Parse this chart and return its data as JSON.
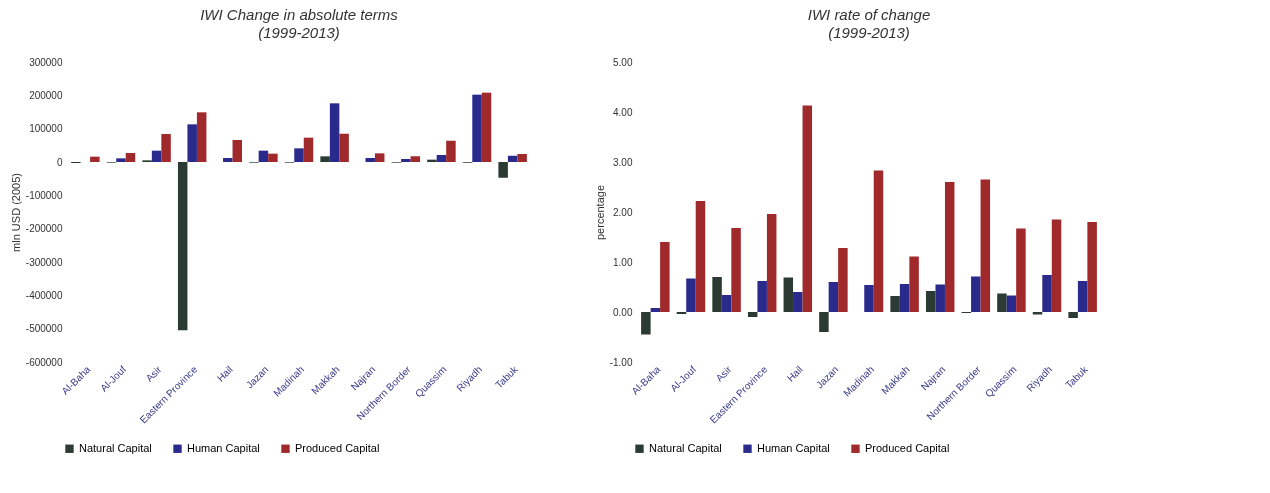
{
  "chart_data": [
    {
      "type": "bar",
      "title": "IWI Change in absolute terms",
      "subtitle": "(1999-2013)",
      "ylabel": "mln USD (2005)",
      "categories": [
        "Al-Baha",
        "Al-Jouf",
        "Asir",
        "Eastern Province",
        "Hail",
        "Jazan",
        "Madinah",
        "Makkah",
        "Najran",
        "Northern Border",
        "Quassim",
        "Riyadh",
        "Tabuk"
      ],
      "series": [
        {
          "name": "Natural Capital",
          "color": "#2b3a33",
          "values": [
            -3000,
            -2000,
            5000,
            -505000,
            0,
            -2000,
            -2000,
            17000,
            0,
            -2000,
            7000,
            -2000,
            -47000
          ]
        },
        {
          "name": "Human Capital",
          "color": "#2a2a8c",
          "values": [
            0,
            11000,
            34000,
            113000,
            12000,
            34000,
            41000,
            176000,
            12000,
            9000,
            21000,
            202000,
            19000
          ]
        },
        {
          "name": "Produced Capital",
          "color": "#a0292b",
          "values": [
            16000,
            27000,
            84000,
            149000,
            66000,
            25000,
            73000,
            85000,
            26000,
            17000,
            64000,
            208000,
            24000
          ]
        }
      ],
      "ylim": [
        -600000,
        300000
      ],
      "yticks": [
        -600000,
        -500000,
        -400000,
        -300000,
        -200000,
        -100000,
        0,
        100000,
        200000,
        300000
      ],
      "grid": false,
      "legend": "bottom"
    },
    {
      "type": "bar",
      "title": "IWI  rate of change",
      "subtitle": "(1999-2013)",
      "ylabel": "percentage",
      "categories": [
        "Al-Baha",
        "Al-Jouf",
        "Asir",
        "Eastern Province",
        "Hail",
        "Jazan",
        "Madinah",
        "Makkah",
        "Najran",
        "Northern Border",
        "Quassim",
        "Riyadh",
        "Tabuk"
      ],
      "series": [
        {
          "name": "Natural Capital",
          "color": "#2b3a33",
          "values": [
            -0.45,
            -0.04,
            0.7,
            -0.1,
            0.69,
            -0.4,
            0,
            0.32,
            0.42,
            -0.02,
            0.37,
            -0.05,
            -0.12
          ]
        },
        {
          "name": "Human Capital",
          "color": "#2a2a8c",
          "values": [
            0.08,
            0.67,
            0.34,
            0.62,
            0.4,
            0.6,
            0.54,
            0.56,
            0.55,
            0.71,
            0.33,
            0.74,
            0.62
          ]
        },
        {
          "name": "Produced Capital",
          "color": "#a0292b",
          "values": [
            1.4,
            2.22,
            1.68,
            1.96,
            4.13,
            1.28,
            2.83,
            1.11,
            2.6,
            2.65,
            1.67,
            1.85,
            1.8
          ]
        }
      ],
      "ylim": [
        -1,
        5
      ],
      "yticks": [
        {
          "value": -1,
          "label": "-1.00"
        },
        {
          "value": 0,
          "label": "0.00"
        },
        {
          "value": 1,
          "label": "1.00"
        },
        {
          "value": 2,
          "label": "2.00"
        },
        {
          "value": 3,
          "label": "3.00"
        },
        {
          "value": 4,
          "label": "4.00"
        },
        {
          "value": 5,
          "label": "5.00"
        }
      ],
      "grid": false,
      "legend": "bottom"
    }
  ]
}
